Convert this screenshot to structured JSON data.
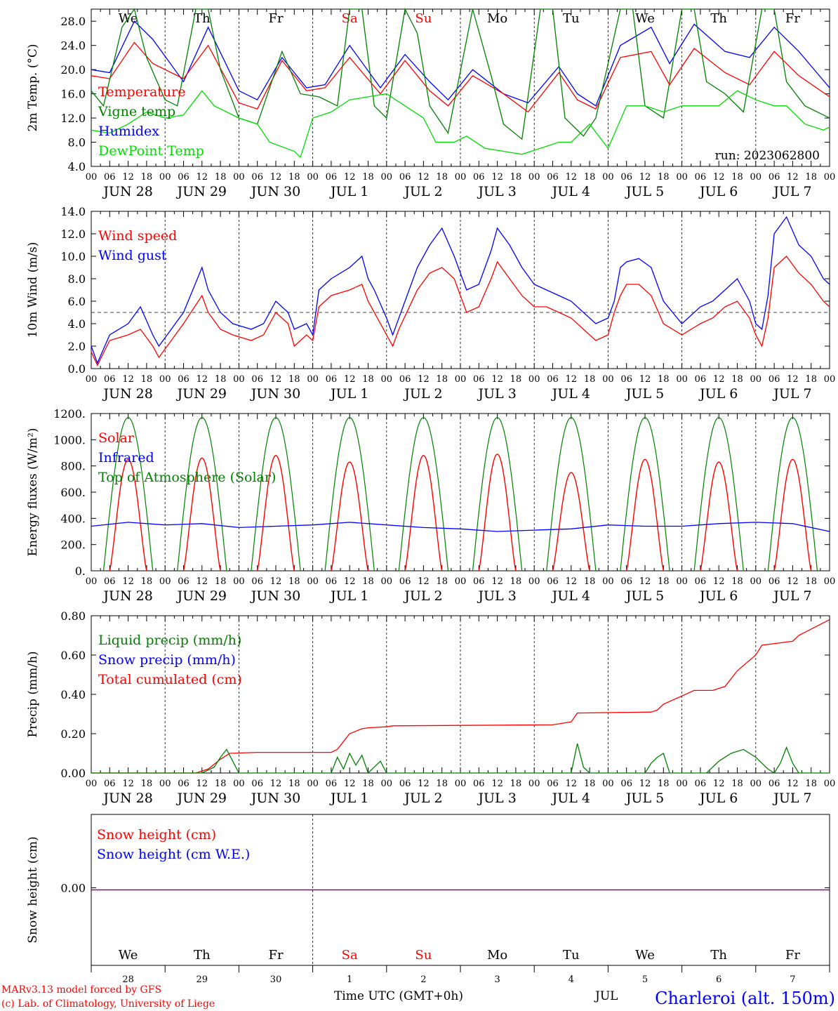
{
  "run_label": "run: 2023062800",
  "footer": {
    "credit_1": "MARv3.13 model forced by GFS",
    "credit_2": "(c) Lab. of Climatology, University of Liege",
    "x_title": "Time UTC (GMT+0h)",
    "station": "Charleroi (alt. 150m)",
    "month_label": "JUL"
  },
  "colors": {
    "red": "#ff0000",
    "blue": "#0000ff",
    "green": "#008000",
    "lightgreen": "#00dd00",
    "weekend": "#ff0000",
    "purple": "#7f007f"
  },
  "days": {
    "weekday": [
      "We",
      "Th",
      "Fr",
      "Sa",
      "Su",
      "Mo",
      "Tu",
      "We",
      "Th",
      "Fr"
    ],
    "weekend": [
      false,
      false,
      false,
      true,
      true,
      false,
      false,
      false,
      false,
      false
    ],
    "date_label": [
      "JUN 28",
      "JUN 29",
      "JUN 30",
      "JUL  1",
      "JUL  2",
      "JUL  3",
      "JUL  4",
      "JUL  5",
      "JUL  6",
      "JUL  7"
    ],
    "day_num": [
      "28",
      "29",
      "30",
      "1",
      "2",
      "3",
      "4",
      "5",
      "6",
      "7"
    ],
    "hour_ticks": [
      "00",
      "06",
      "12",
      "18"
    ],
    "final_tick": "00"
  },
  "chart_data": [
    {
      "type": "line",
      "ylabel": "2m Temp. (°C)",
      "ylim": [
        4,
        30
      ],
      "yticks": [
        "4.0",
        "8.0",
        "12.0",
        "16.0",
        "20.0",
        "24.0",
        "28.0"
      ],
      "x_unit": "hours since 2023-06-28 00 UTC",
      "legend": [
        {
          "name": "Temperature",
          "color": "#ff0000"
        },
        {
          "name": "Vigne temp",
          "color": "#008000"
        },
        {
          "name": "Humidex",
          "color": "#0000ff"
        },
        {
          "name": "DewPoint Temp",
          "color": "#00dd00"
        }
      ],
      "series": [
        {
          "name": "Humidex",
          "color": "#0000ff",
          "x": [
            0,
            6,
            14,
            20,
            30,
            38,
            48,
            54,
            62,
            70,
            76,
            84,
            94,
            102,
            110,
            116,
            124,
            134,
            142,
            152,
            158,
            164,
            172,
            182,
            188,
            196,
            206,
            214,
            222,
            230,
            240
          ],
          "y": [
            20,
            19.5,
            28,
            25,
            18,
            27,
            16.5,
            15,
            22,
            17,
            17.5,
            24,
            17,
            22.5,
            18,
            15,
            20,
            16,
            14.5,
            20.5,
            16,
            14,
            24,
            27,
            21,
            27.5,
            23,
            22,
            27,
            23,
            17
          ]
        },
        {
          "name": "Temperature",
          "color": "#ff0000",
          "x": [
            0,
            6,
            14,
            20,
            30,
            38,
            48,
            54,
            62,
            70,
            76,
            84,
            94,
            102,
            110,
            116,
            124,
            134,
            142,
            152,
            158,
            164,
            172,
            182,
            188,
            196,
            206,
            214,
            222,
            230,
            240
          ],
          "y": [
            19,
            18.5,
            24.5,
            21,
            18.5,
            24,
            14.5,
            13.5,
            21.5,
            16.5,
            17,
            22,
            16,
            21.5,
            16.5,
            14,
            19,
            16,
            13,
            19.5,
            15,
            13.5,
            22,
            23,
            17.5,
            23.5,
            19.5,
            17.5,
            23,
            19,
            15.5
          ]
        },
        {
          "name": "Vigne temp",
          "color": "#008000",
          "x": [
            0,
            4,
            10,
            14,
            18,
            24,
            28,
            34,
            38,
            42,
            48,
            54,
            62,
            68,
            74,
            80,
            84,
            88,
            92,
            96,
            102,
            106,
            110,
            116,
            124,
            130,
            134,
            140,
            146,
            150,
            154,
            160,
            164,
            172,
            176,
            180,
            186,
            192,
            196,
            200,
            206,
            212,
            218,
            222,
            226,
            232,
            240
          ],
          "y": [
            16.5,
            14,
            27,
            30,
            22,
            15,
            14,
            30,
            30,
            20,
            12,
            11,
            23,
            16,
            15.5,
            14,
            30,
            30,
            14,
            12,
            30,
            26,
            14,
            9.5,
            30,
            19,
            11,
            8.5,
            30,
            30,
            12,
            9,
            12,
            30,
            30,
            14,
            12,
            30,
            30,
            18,
            16,
            13,
            30,
            30,
            18,
            14,
            12
          ]
        },
        {
          "name": "DewPoint Temp",
          "color": "#00dd00",
          "x": [
            0,
            6,
            12,
            18,
            24,
            30,
            36,
            40,
            48,
            54,
            58,
            66,
            68,
            72,
            78,
            84,
            90,
            96,
            102,
            108,
            112,
            118,
            122,
            128,
            134,
            140,
            146,
            152,
            156,
            162,
            168,
            174,
            180,
            186,
            192,
            198,
            204,
            210,
            216,
            222,
            226,
            232,
            238,
            240
          ],
          "y": [
            10,
            9.5,
            11,
            13,
            12,
            12.5,
            16.5,
            14,
            12,
            11,
            8,
            6.5,
            5.5,
            12,
            13,
            15,
            15.5,
            16,
            14,
            12,
            8,
            8,
            9,
            7,
            6.5,
            6,
            7,
            8,
            8,
            11,
            7,
            14,
            14,
            13,
            14,
            14,
            14,
            16.5,
            15,
            14,
            14,
            11,
            10,
            10.5
          ]
        }
      ]
    },
    {
      "type": "line",
      "ylabel": "10m Wind (m/s)",
      "ylim": [
        0,
        14
      ],
      "yticks": [
        "0.0",
        "2.0",
        "4.0",
        "6.0",
        "8.0",
        "10.0",
        "12.0",
        "14.0"
      ],
      "reference_line_y": 5,
      "legend": [
        {
          "name": "Wind speed",
          "color": "#ff0000"
        },
        {
          "name": "Wind gust",
          "color": "#0000ff"
        }
      ],
      "series": [
        {
          "name": "Wind gust",
          "color": "#0000ff",
          "x": [
            0,
            2,
            6,
            12,
            16,
            20,
            22,
            26,
            30,
            36,
            38,
            42,
            46,
            52,
            56,
            60,
            64,
            66,
            70,
            72,
            74,
            78,
            84,
            88,
            90,
            92,
            96,
            98,
            100,
            106,
            110,
            114,
            118,
            122,
            126,
            130,
            132,
            136,
            140,
            144,
            148,
            152,
            156,
            160,
            164,
            168,
            170,
            172,
            174,
            178,
            182,
            186,
            192,
            198,
            202,
            206,
            210,
            214,
            216,
            218,
            220,
            222,
            226,
            230,
            234,
            238,
            240
          ],
          "y": [
            2,
            0.5,
            3,
            4,
            5.5,
            3,
            2,
            3.5,
            5,
            9,
            7,
            5,
            4,
            3.5,
            4,
            6,
            5,
            3.5,
            4,
            3,
            7,
            8,
            9,
            10,
            8,
            7,
            4.5,
            3,
            4.5,
            9,
            11,
            12.5,
            10,
            7,
            7.5,
            10.5,
            12.5,
            11,
            9,
            7.5,
            7,
            6.5,
            6,
            5,
            4,
            4.5,
            6,
            9,
            9.5,
            9.8,
            9,
            6,
            4,
            5.5,
            6,
            7,
            8,
            6,
            4,
            3.5,
            6.5,
            12,
            13.5,
            11,
            10,
            8,
            7.5
          ]
        },
        {
          "name": "Wind speed",
          "color": "#ff0000",
          "x": [
            0,
            2,
            6,
            12,
            16,
            20,
            22,
            26,
            30,
            36,
            38,
            42,
            46,
            52,
            56,
            60,
            64,
            66,
            70,
            72,
            74,
            78,
            84,
            88,
            90,
            92,
            96,
            98,
            100,
            106,
            110,
            114,
            118,
            122,
            126,
            130,
            132,
            136,
            140,
            144,
            148,
            152,
            156,
            160,
            164,
            168,
            170,
            172,
            174,
            178,
            182,
            186,
            192,
            198,
            202,
            206,
            210,
            214,
            216,
            218,
            220,
            222,
            226,
            230,
            234,
            238,
            240
          ],
          "y": [
            1.5,
            0.3,
            2.5,
            3,
            3.5,
            2,
            1,
            2.5,
            4,
            6.5,
            5,
            3.5,
            3,
            2.5,
            3,
            5,
            4,
            2,
            3,
            2.5,
            5.5,
            6.5,
            7,
            7.5,
            6,
            5,
            3,
            2,
            3.5,
            7,
            8.5,
            9,
            8,
            5,
            5.5,
            8,
            9.5,
            8,
            6.5,
            5.5,
            5.5,
            5,
            4.5,
            3.5,
            2.5,
            3,
            5,
            6.5,
            7.5,
            7.5,
            6.5,
            4,
            3,
            4,
            4.5,
            5.5,
            6,
            4.5,
            3,
            2,
            4.5,
            9,
            10,
            8.5,
            7.5,
            6,
            5.5
          ]
        }
      ]
    },
    {
      "type": "line",
      "ylabel": "Energy fluxes (W/m²)",
      "ylim": [
        0,
        1200
      ],
      "yticks": [
        "0.",
        "200.",
        "400.",
        "600.",
        "800.",
        "1000.",
        "1200."
      ],
      "legend": [
        {
          "name": "Solar",
          "color": "#ff0000"
        },
        {
          "name": "Infrared",
          "color": "#0000ff"
        },
        {
          "name": "Top of Atmosphere (Solar)",
          "color": "#008000"
        }
      ],
      "toa_peak": 1170,
      "solar_day_peaks": [
        850,
        860,
        880,
        830,
        880,
        890,
        750,
        850,
        830,
        850
      ],
      "sunrise_hour": 4,
      "sunset_hour": 20,
      "series": [
        {
          "name": "Infrared",
          "color": "#0000ff",
          "x": [
            0,
            12,
            24,
            36,
            48,
            60,
            72,
            84,
            96,
            108,
            120,
            132,
            144,
            156,
            168,
            180,
            192,
            204,
            216,
            228,
            240
          ],
          "y": [
            340,
            370,
            350,
            360,
            330,
            340,
            350,
            370,
            350,
            330,
            320,
            300,
            310,
            320,
            350,
            340,
            340,
            360,
            370,
            360,
            300
          ]
        }
      ]
    },
    {
      "type": "line",
      "ylabel": "Precip (mm/h)",
      "ylim": [
        0,
        0.8
      ],
      "yticks": [
        "0.00",
        "0.20",
        "0.40",
        "0.60",
        "0.80"
      ],
      "legend": [
        {
          "name": "Liquid precip (mm/h)",
          "color": "#008000"
        },
        {
          "name": "Snow precip (mm/h)",
          "color": "#0000ff"
        },
        {
          "name": "Total cumulated (cm)",
          "color": "#ff0000"
        }
      ],
      "series": [
        {
          "name": "Total cumulated (cm)",
          "color": "#ff0000",
          "x": [
            0,
            34,
            38,
            42,
            45,
            54,
            78,
            80,
            82,
            84,
            88,
            90,
            96,
            98,
            150,
            152,
            156,
            158,
            182,
            184,
            186,
            196,
            198,
            202,
            206,
            210,
            216,
            218,
            228,
            230,
            240
          ],
          "y": [
            0,
            0,
            0.02,
            0.07,
            0.1,
            0.105,
            0.105,
            0.12,
            0.16,
            0.2,
            0.225,
            0.23,
            0.235,
            0.24,
            0.245,
            0.25,
            0.26,
            0.305,
            0.31,
            0.32,
            0.35,
            0.42,
            0.42,
            0.42,
            0.44,
            0.52,
            0.6,
            0.65,
            0.67,
            0.7,
            0.78
          ]
        },
        {
          "name": "Liquid precip (mm/h)",
          "color": "#008000",
          "x": [
            0,
            36,
            40,
            42,
            44,
            46,
            48,
            78,
            80,
            82,
            84,
            86,
            88,
            90,
            94,
            96,
            98,
            156,
            158,
            160,
            162,
            166,
            180,
            182,
            184,
            186,
            188,
            200,
            204,
            208,
            212,
            216,
            220,
            222,
            224,
            226,
            228,
            230,
            240
          ],
          "y": [
            0,
            0,
            0.03,
            0.08,
            0.12,
            0.06,
            0,
            0,
            0.08,
            0.02,
            0.1,
            0.04,
            0.09,
            0,
            0.06,
            0,
            0,
            0,
            0.15,
            0.03,
            0,
            0,
            0,
            0.05,
            0.08,
            0.1,
            0,
            0,
            0.06,
            0.1,
            0.12,
            0.08,
            0.02,
            0,
            0.05,
            0.13,
            0.05,
            0,
            0
          ]
        }
      ]
    },
    {
      "type": "line",
      "ylabel": "Snow height (cm)",
      "yticks": [
        "0.00"
      ],
      "legend": [
        {
          "name": "Snow height (cm)",
          "color": "#ff0000"
        },
        {
          "name": "Snow height (cm W.E.)",
          "color": "#0000ff"
        }
      ],
      "series": [
        {
          "name": "Snow height (cm)",
          "color": "#ff0000",
          "x": [
            0,
            240
          ],
          "y": [
            0,
            0
          ]
        },
        {
          "name": "Snow height (cm W.E.)",
          "color": "#0000ff",
          "x": [
            0,
            240
          ],
          "y": [
            0,
            0
          ]
        }
      ]
    }
  ]
}
